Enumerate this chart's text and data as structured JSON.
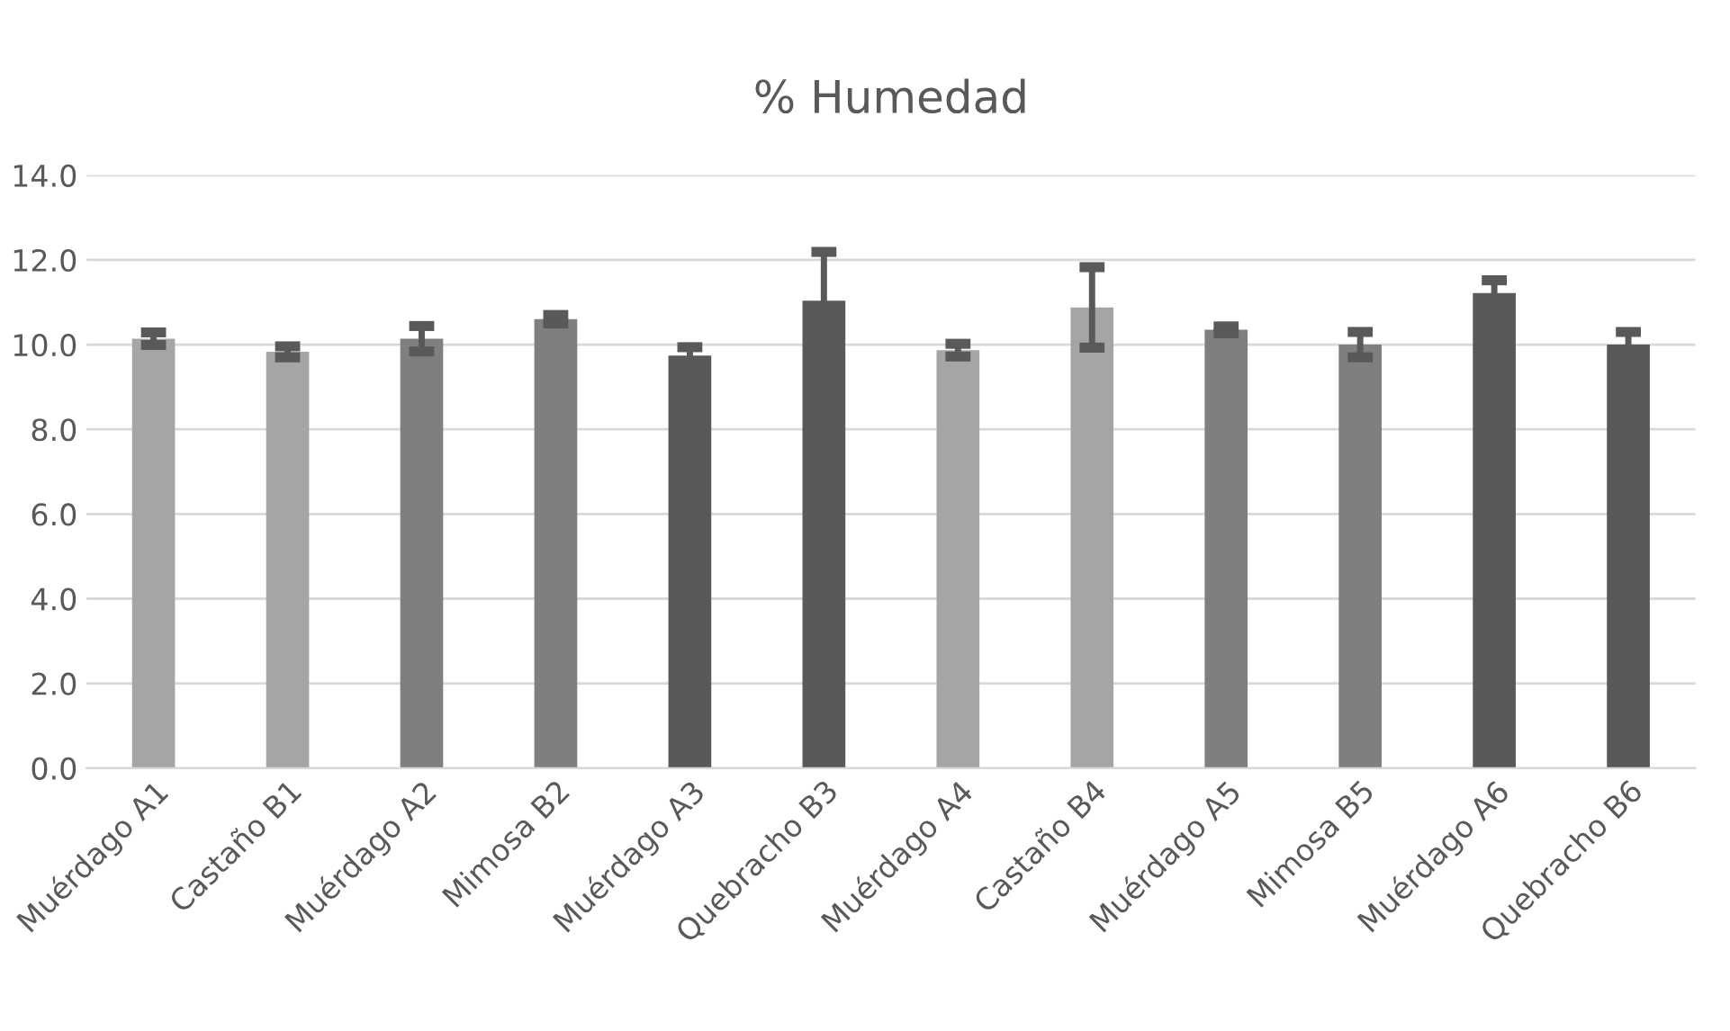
{
  "chart_data": {
    "type": "bar",
    "title": "% Humedad",
    "categories": [
      "Muérdago A1",
      "Castaño B1",
      "Muérdago A2",
      "Mimosa B2",
      "Muérdago A3",
      "Quebracho B3",
      "Muérdago A4",
      "Castaño B4",
      "Muérdago A5",
      "Mimosa B5",
      "Muérdago A6",
      "Quebracho B6"
    ],
    "values": [
      10.14,
      9.83,
      10.14,
      10.6,
      9.74,
      11.04,
      9.87,
      10.88,
      10.35,
      10.0,
      11.22,
      10.0
    ],
    "errors": [
      0.15,
      0.13,
      0.3,
      0.1,
      0.2,
      1.15,
      0.15,
      0.95,
      0.08,
      0.3,
      0.3,
      0.3
    ],
    "colors": [
      "#a5a5a5",
      "#a5a5a5",
      "#7f7f7f",
      "#7f7f7f",
      "#595959",
      "#595959",
      "#a5a5a5",
      "#a5a5a5",
      "#7f7f7f",
      "#7f7f7f",
      "#595959",
      "#595959"
    ],
    "ylim": [
      0,
      14
    ],
    "yticks": [
      {
        "value": 0,
        "label": "0.0"
      },
      {
        "value": 2,
        "label": "2.0"
      },
      {
        "value": 4,
        "label": "4.0"
      },
      {
        "value": 6,
        "label": "6.0"
      },
      {
        "value": 8,
        "label": "8.0"
      },
      {
        "value": 10,
        "label": "10.0"
      },
      {
        "value": 12,
        "label": "12.0"
      },
      {
        "value": 14,
        "label": "14.0"
      }
    ],
    "grid": "y",
    "legend": false
  }
}
